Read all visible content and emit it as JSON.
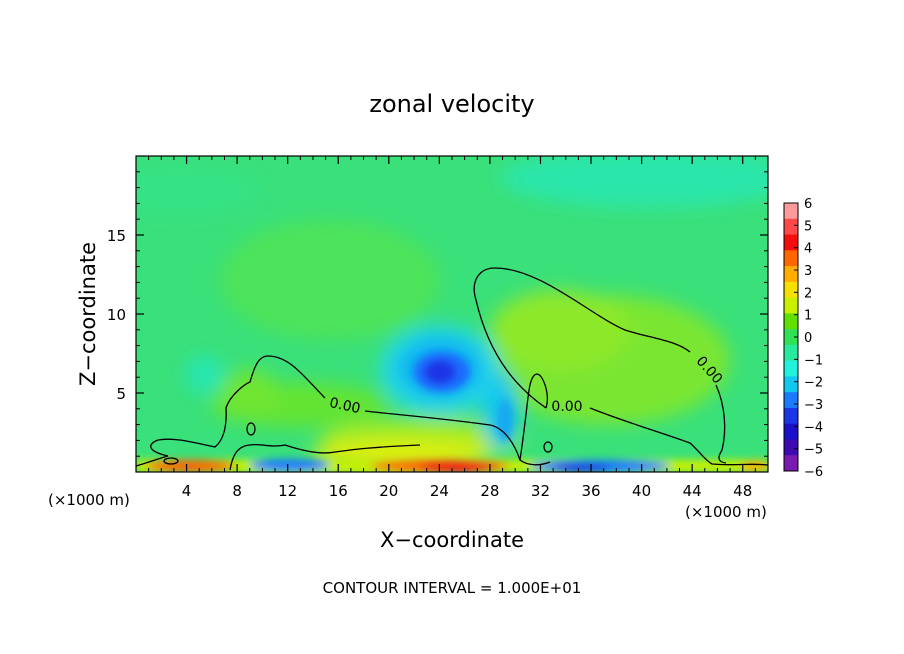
{
  "chart_data": {
    "type": "heatmap",
    "title": "zonal velocity",
    "xlabel": "X−coordinate",
    "ylabel": "Z−coordinate",
    "x_unit_left": "(×1000 m)",
    "x_unit_right": "(×1000 m)",
    "xlim": [
      0,
      50
    ],
    "ylim": [
      0,
      20
    ],
    "x_ticks": [
      4,
      8,
      12,
      16,
      20,
      24,
      28,
      32,
      36,
      40,
      44,
      48
    ],
    "y_ticks": [
      5,
      10,
      15
    ],
    "colorbar": {
      "ticks": [
        6,
        5,
        4,
        3,
        2,
        1,
        0,
        -1,
        -2,
        -3,
        -4,
        -5,
        -6
      ],
      "tick_labels": [
        "6",
        "5",
        "4",
        "3",
        "2",
        "1",
        "0",
        "−1",
        "−2",
        "−3",
        "−4",
        "−5",
        "−6"
      ],
      "colors": [
        "#ff9a9a",
        "#ff4848",
        "#f50c0c",
        "#ff6600",
        "#ffae00",
        "#f5e000",
        "#c8f000",
        "#60e000",
        "#32e055",
        "#27ea9e",
        "#20f2de",
        "#10c8f0",
        "#1a7bff",
        "#1d36e5",
        "#1a10c8",
        "#3c0ab0",
        "#7a1ab0"
      ]
    },
    "contours": [
      {
        "level": 0,
        "label": "0.00"
      }
    ],
    "annotation": "CONTOUR INTERVAL = 1.000E+01"
  }
}
